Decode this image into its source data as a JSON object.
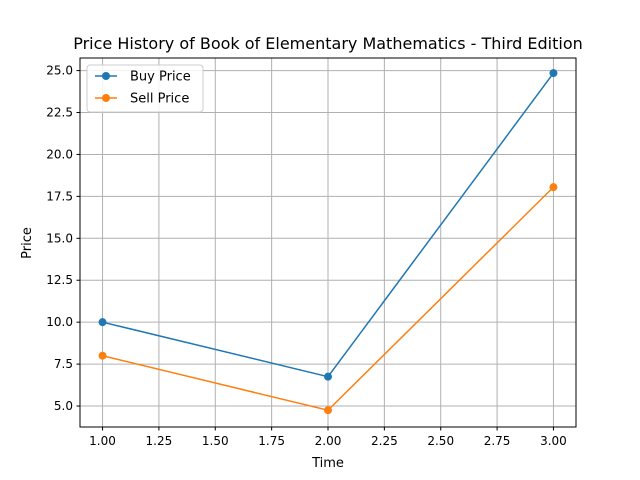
{
  "chart_data": {
    "type": "line",
    "title": "Price History of Book of Elementary Mathematics - Third Edition",
    "xlabel": "Time",
    "ylabel": "Price",
    "x": [
      1.0,
      2.0,
      3.0
    ],
    "xlim": [
      0.9,
      3.1
    ],
    "ylim": [
      3.75,
      25.75
    ],
    "xticks": [
      "1.00",
      "1.25",
      "1.50",
      "1.75",
      "2.00",
      "2.25",
      "2.50",
      "2.75",
      "3.00"
    ],
    "yticks": [
      "5.0",
      "7.5",
      "10.0",
      "12.5",
      "15.0",
      "17.5",
      "20.0",
      "22.5",
      "25.0"
    ],
    "grid": true,
    "legend_position": "top-left",
    "series": [
      {
        "name": "Buy Price",
        "values": [
          10.0,
          6.75,
          24.85
        ],
        "color": "#1f77b4",
        "marker": "circle"
      },
      {
        "name": "Sell Price",
        "values": [
          8.0,
          4.75,
          18.05
        ],
        "color": "#ff7f0e",
        "marker": "circle"
      }
    ]
  }
}
